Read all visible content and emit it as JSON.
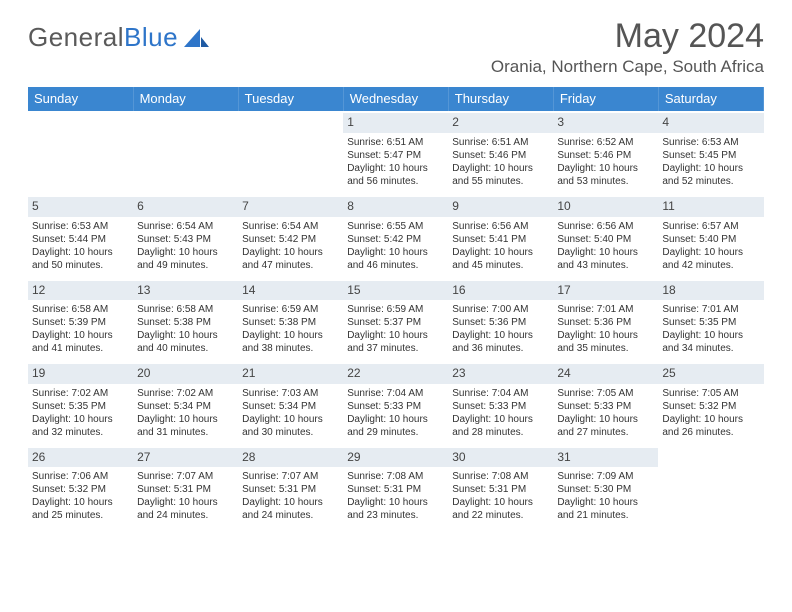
{
  "brand": {
    "word1": "General",
    "word2": "Blue"
  },
  "title": "May 2024",
  "location": "Orania, Northern Cape, South Africa",
  "colors": {
    "header_bg": "#3a86d0",
    "header_text": "#ffffff",
    "daybar_bg": "#e6ecf2",
    "row_border": "#2e6aa8",
    "text": "#333333",
    "logo_gray": "#5a5a5a",
    "logo_blue": "#2e75c9"
  },
  "weekdays": [
    "Sunday",
    "Monday",
    "Tuesday",
    "Wednesday",
    "Thursday",
    "Friday",
    "Saturday"
  ],
  "weeks": [
    [
      {
        "n": "",
        "sr": "",
        "ss": "",
        "dl": "",
        "empty": true
      },
      {
        "n": "",
        "sr": "",
        "ss": "",
        "dl": "",
        "empty": true
      },
      {
        "n": "",
        "sr": "",
        "ss": "",
        "dl": "",
        "empty": true
      },
      {
        "n": "1",
        "sr": "6:51 AM",
        "ss": "5:47 PM",
        "dl": "10 hours and 56 minutes."
      },
      {
        "n": "2",
        "sr": "6:51 AM",
        "ss": "5:46 PM",
        "dl": "10 hours and 55 minutes."
      },
      {
        "n": "3",
        "sr": "6:52 AM",
        "ss": "5:46 PM",
        "dl": "10 hours and 53 minutes."
      },
      {
        "n": "4",
        "sr": "6:53 AM",
        "ss": "5:45 PM",
        "dl": "10 hours and 52 minutes."
      }
    ],
    [
      {
        "n": "5",
        "sr": "6:53 AM",
        "ss": "5:44 PM",
        "dl": "10 hours and 50 minutes."
      },
      {
        "n": "6",
        "sr": "6:54 AM",
        "ss": "5:43 PM",
        "dl": "10 hours and 49 minutes."
      },
      {
        "n": "7",
        "sr": "6:54 AM",
        "ss": "5:42 PM",
        "dl": "10 hours and 47 minutes."
      },
      {
        "n": "8",
        "sr": "6:55 AM",
        "ss": "5:42 PM",
        "dl": "10 hours and 46 minutes."
      },
      {
        "n": "9",
        "sr": "6:56 AM",
        "ss": "5:41 PM",
        "dl": "10 hours and 45 minutes."
      },
      {
        "n": "10",
        "sr": "6:56 AM",
        "ss": "5:40 PM",
        "dl": "10 hours and 43 minutes."
      },
      {
        "n": "11",
        "sr": "6:57 AM",
        "ss": "5:40 PM",
        "dl": "10 hours and 42 minutes."
      }
    ],
    [
      {
        "n": "12",
        "sr": "6:58 AM",
        "ss": "5:39 PM",
        "dl": "10 hours and 41 minutes."
      },
      {
        "n": "13",
        "sr": "6:58 AM",
        "ss": "5:38 PM",
        "dl": "10 hours and 40 minutes."
      },
      {
        "n": "14",
        "sr": "6:59 AM",
        "ss": "5:38 PM",
        "dl": "10 hours and 38 minutes."
      },
      {
        "n": "15",
        "sr": "6:59 AM",
        "ss": "5:37 PM",
        "dl": "10 hours and 37 minutes."
      },
      {
        "n": "16",
        "sr": "7:00 AM",
        "ss": "5:36 PM",
        "dl": "10 hours and 36 minutes."
      },
      {
        "n": "17",
        "sr": "7:01 AM",
        "ss": "5:36 PM",
        "dl": "10 hours and 35 minutes."
      },
      {
        "n": "18",
        "sr": "7:01 AM",
        "ss": "5:35 PM",
        "dl": "10 hours and 34 minutes."
      }
    ],
    [
      {
        "n": "19",
        "sr": "7:02 AM",
        "ss": "5:35 PM",
        "dl": "10 hours and 32 minutes."
      },
      {
        "n": "20",
        "sr": "7:02 AM",
        "ss": "5:34 PM",
        "dl": "10 hours and 31 minutes."
      },
      {
        "n": "21",
        "sr": "7:03 AM",
        "ss": "5:34 PM",
        "dl": "10 hours and 30 minutes."
      },
      {
        "n": "22",
        "sr": "7:04 AM",
        "ss": "5:33 PM",
        "dl": "10 hours and 29 minutes."
      },
      {
        "n": "23",
        "sr": "7:04 AM",
        "ss": "5:33 PM",
        "dl": "10 hours and 28 minutes."
      },
      {
        "n": "24",
        "sr": "7:05 AM",
        "ss": "5:33 PM",
        "dl": "10 hours and 27 minutes."
      },
      {
        "n": "25",
        "sr": "7:05 AM",
        "ss": "5:32 PM",
        "dl": "10 hours and 26 minutes."
      }
    ],
    [
      {
        "n": "26",
        "sr": "7:06 AM",
        "ss": "5:32 PM",
        "dl": "10 hours and 25 minutes."
      },
      {
        "n": "27",
        "sr": "7:07 AM",
        "ss": "5:31 PM",
        "dl": "10 hours and 24 minutes."
      },
      {
        "n": "28",
        "sr": "7:07 AM",
        "ss": "5:31 PM",
        "dl": "10 hours and 24 minutes."
      },
      {
        "n": "29",
        "sr": "7:08 AM",
        "ss": "5:31 PM",
        "dl": "10 hours and 23 minutes."
      },
      {
        "n": "30",
        "sr": "7:08 AM",
        "ss": "5:31 PM",
        "dl": "10 hours and 22 minutes."
      },
      {
        "n": "31",
        "sr": "7:09 AM",
        "ss": "5:30 PM",
        "dl": "10 hours and 21 minutes."
      },
      {
        "n": "",
        "sr": "",
        "ss": "",
        "dl": "",
        "empty": true
      }
    ]
  ],
  "labels": {
    "sunrise": "Sunrise: ",
    "sunset": "Sunset: ",
    "daylight": "Daylight: "
  }
}
